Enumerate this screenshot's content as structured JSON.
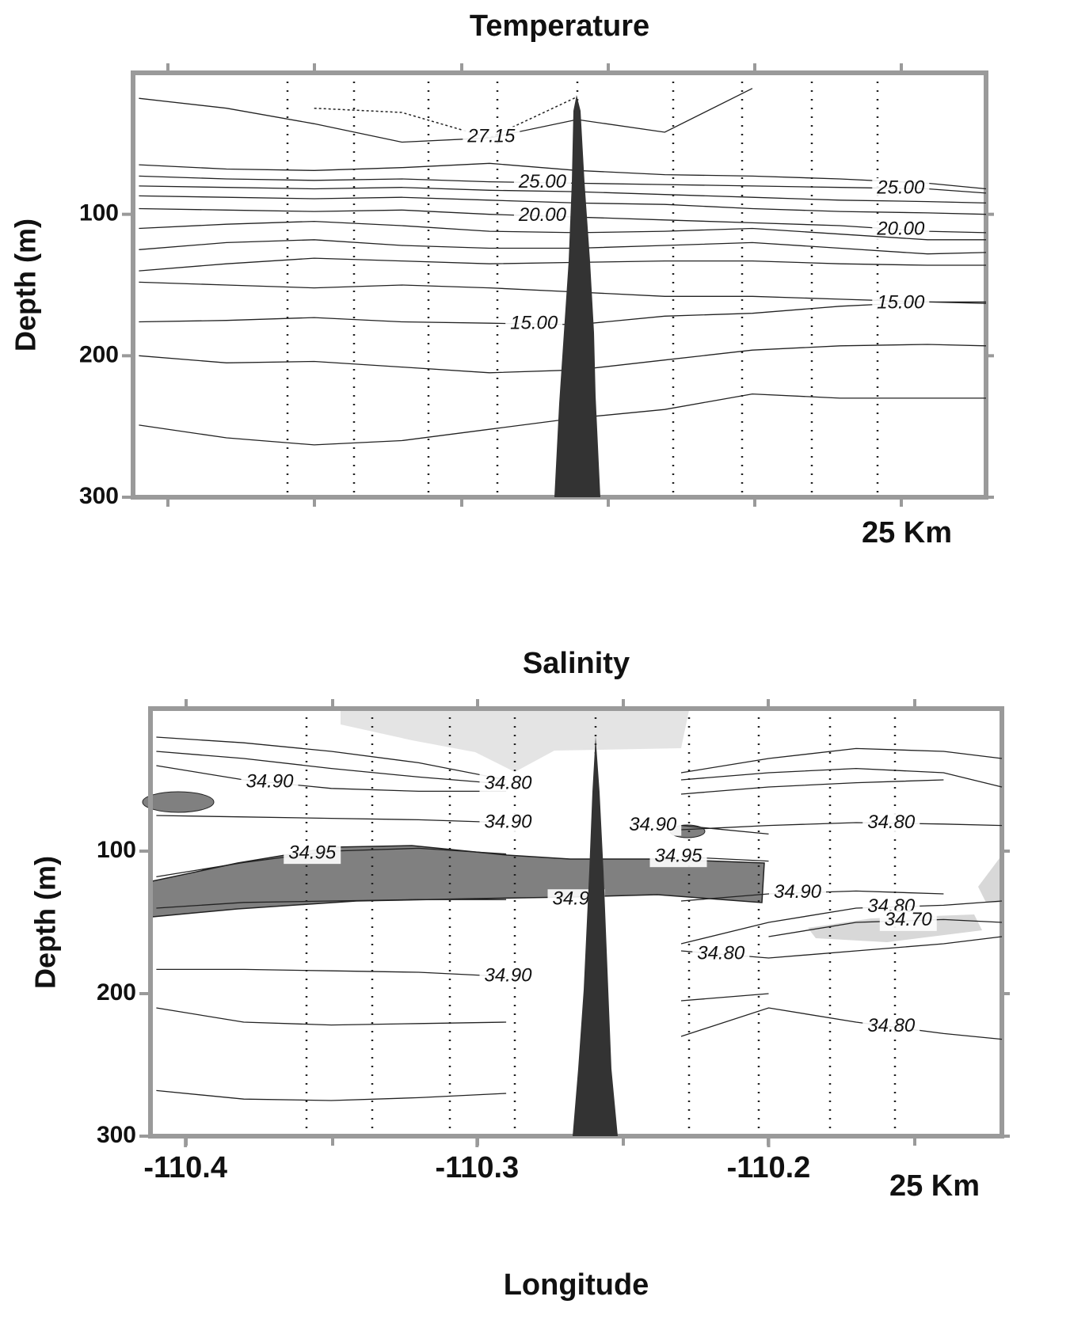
{
  "chart_data": [
    {
      "type": "contour",
      "title": "Temperature",
      "ylabel": "Depth (m)",
      "scale_label": "25 Km",
      "xlim": [
        -110.412,
        -110.12
      ],
      "ylim": [
        0,
        300
      ],
      "yticks": [
        100,
        200,
        300
      ],
      "y_inverted": true,
      "line_color": "#222222",
      "x": [
        -110.41,
        -110.38,
        -110.35,
        -110.32,
        -110.29,
        -110.26,
        -110.23,
        -110.2,
        -110.17,
        -110.14,
        -110.12
      ],
      "contours": [
        {
          "depth": [
            18,
            25,
            36,
            49,
            46,
            33,
            42,
            11,
            null,
            null,
            null
          ]
        },
        {
          "depth": [
            null,
            null,
            25,
            28,
            46,
            17,
            null,
            null,
            null,
            null,
            null
          ],
          "labels": [
            "27.15"
          ],
          "style": "dotted"
        },
        {
          "depth": [
            65,
            68,
            69,
            67,
            64,
            69,
            72,
            73,
            75,
            78,
            82
          ]
        },
        {
          "depth": [
            73,
            75,
            76,
            75,
            77,
            78,
            79,
            80,
            81,
            82,
            85
          ],
          "labels": [
            "25.00",
            "25.00"
          ]
        },
        {
          "depth": [
            80,
            81,
            82,
            81,
            83,
            84,
            86,
            88,
            90,
            91,
            92
          ]
        },
        {
          "depth": [
            87,
            88,
            89,
            88,
            90,
            92,
            93,
            96,
            98,
            99,
            100
          ]
        },
        {
          "depth": [
            96,
            97,
            98,
            97,
            100,
            102,
            104,
            106,
            108,
            112,
            113
          ],
          "labels": [
            "20.00",
            "20.00"
          ]
        },
        {
          "depth": [
            110,
            107,
            105,
            108,
            112,
            113,
            112,
            110,
            114,
            118,
            118
          ]
        },
        {
          "depth": [
            125,
            120,
            118,
            122,
            124,
            124,
            122,
            120,
            124,
            128,
            127
          ]
        },
        {
          "depth": [
            140,
            135,
            131,
            133,
            135,
            134,
            133,
            133,
            135,
            136,
            136
          ]
        },
        {
          "depth": [
            148,
            150,
            152,
            150,
            152,
            155,
            158,
            158,
            160,
            162,
            163
          ]
        },
        {
          "depth": [
            176,
            175,
            173,
            176,
            177,
            178,
            172,
            170,
            165,
            162,
            162
          ],
          "labels": [
            "15.00",
            "15.00"
          ]
        },
        {
          "depth": [
            200,
            205,
            204,
            208,
            212,
            210,
            203,
            196,
            193,
            192,
            193
          ]
        },
        {
          "depth": [
            249,
            258,
            263,
            260,
            252,
            244,
            238,
            227,
            230,
            230,
            230
          ]
        }
      ]
    },
    {
      "type": "contour",
      "title": "Salinity",
      "ylabel": "Depth (m)",
      "xlabel": "Longitude",
      "scale_label": "25 Km",
      "xlim": [
        -110.412,
        -110.12
      ],
      "ylim": [
        0,
        300
      ],
      "yticks": [
        100,
        200,
        300
      ],
      "xticks": [
        -110.4,
        -110.3,
        -110.2
      ],
      "y_inverted": true,
      "line_color": "#222222",
      "x": [
        -110.41,
        -110.38,
        -110.35,
        -110.32,
        -110.29,
        -110.26,
        -110.23,
        -110.2,
        -110.17,
        -110.14,
        -110.12
      ],
      "contours": [
        {
          "depth": [
            20,
            24,
            30,
            38,
            50,
            null,
            45,
            35,
            28,
            30,
            35
          ]
        },
        {
          "depth": [
            40,
            50,
            56,
            58,
            58,
            null,
            50,
            45,
            42,
            45,
            55
          ],
          "labels": [
            "34.90"
          ]
        },
        {
          "depth": [
            30,
            35,
            42,
            48,
            53,
            null,
            60,
            55,
            52,
            50,
            null
          ],
          "labels": [
            "34.80"
          ]
        },
        {
          "depth": [
            null,
            null,
            null,
            null,
            null,
            null,
            85,
            82,
            80,
            81,
            82
          ],
          "labels": [
            "34.80"
          ]
        },
        {
          "depth": [
            75,
            76,
            77,
            78,
            80,
            null,
            82,
            88,
            null,
            null,
            null
          ],
          "labels": [
            "34.90",
            "34.90"
          ]
        },
        {
          "depth": [
            118,
            108,
            100,
            98,
            102,
            null,
            104,
            107,
            null,
            null,
            null
          ],
          "labels": [
            "34.95",
            "34.95"
          ]
        },
        {
          "depth": [
            140,
            136,
            135,
            134,
            134,
            null,
            132,
            null,
            null,
            null,
            null
          ],
          "labels": [
            "34.95"
          ]
        },
        {
          "depth": [
            null,
            null,
            null,
            null,
            null,
            null,
            135,
            130,
            128,
            130,
            null
          ],
          "labels": [
            "34.90"
          ]
        },
        {
          "depth": [
            null,
            null,
            null,
            null,
            null,
            null,
            165,
            150,
            140,
            138,
            135
          ],
          "labels": [
            "34.80"
          ]
        },
        {
          "depth": [
            null,
            null,
            null,
            null,
            null,
            null,
            null,
            160,
            150,
            148,
            150
          ],
          "labels": [
            "34.70"
          ]
        },
        {
          "depth": [
            null,
            null,
            null,
            null,
            null,
            null,
            170,
            175,
            170,
            165,
            160
          ],
          "labels": [
            "34.80"
          ]
        },
        {
          "depth": [
            183,
            183,
            184,
            185,
            188,
            null,
            null,
            null,
            null,
            null,
            null
          ],
          "labels": [
            "34.90"
          ]
        },
        {
          "depth": [
            210,
            220,
            222,
            221,
            220,
            null,
            205,
            200,
            null,
            null,
            null
          ]
        },
        {
          "depth": [
            null,
            null,
            null,
            null,
            null,
            null,
            230,
            210,
            220,
            228,
            232
          ],
          "labels": [
            "34.80"
          ]
        },
        {
          "depth": [
            268,
            274,
            275,
            273,
            270,
            null,
            null,
            null,
            null,
            null,
            null
          ]
        }
      ]
    }
  ]
}
